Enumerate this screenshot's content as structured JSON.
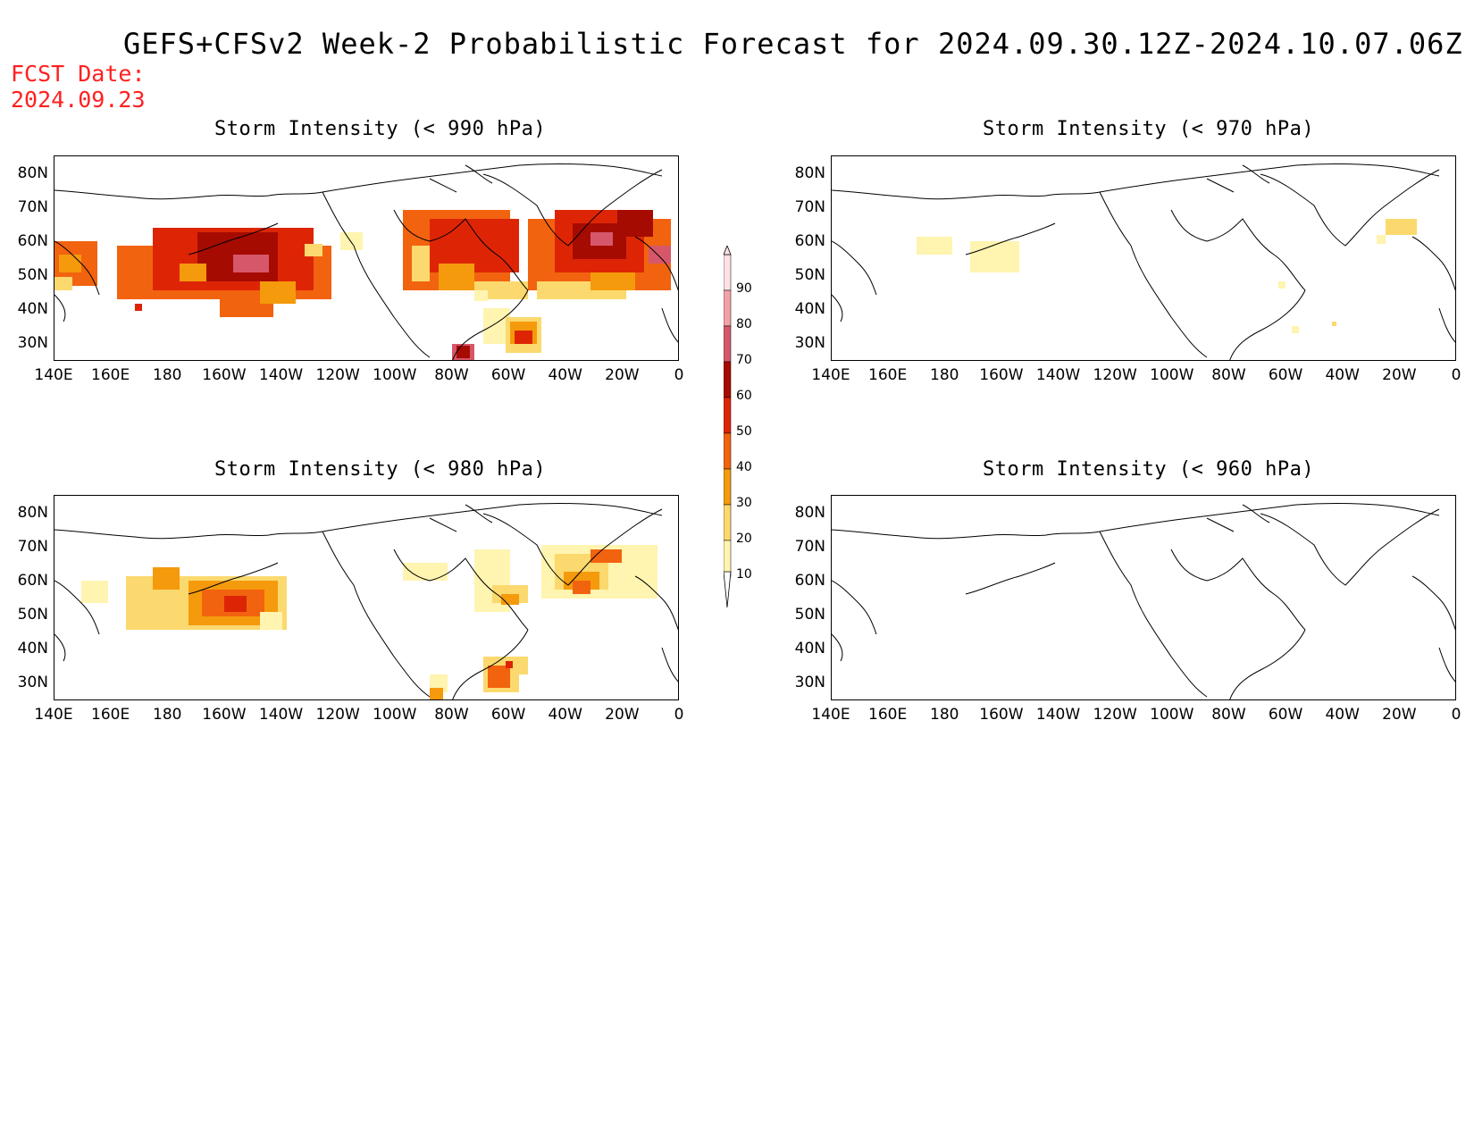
{
  "title": "GEFS+CFSv2 Week-2 Probabilistic Forecast for 2024.09.30.12Z-2024.10.07.06Z",
  "fcst_label": "FCST Date:",
  "fcst_date": "2024.09.23",
  "lat_labels": [
    "80N",
    "70N",
    "60N",
    "50N",
    "40N",
    "30N"
  ],
  "lon_labels": [
    "140E",
    "160E",
    "180",
    "160W",
    "140W",
    "120W",
    "100W",
    "80W",
    "60W",
    "40W",
    "20W",
    "0"
  ],
  "panels": [
    {
      "id": "p990",
      "title": "Storm Intensity (< 990 hPa)"
    },
    {
      "id": "p970",
      "title": "Storm Intensity (< 970 hPa)"
    },
    {
      "id": "p980",
      "title": "Storm Intensity (< 980 hPa)"
    },
    {
      "id": "p960",
      "title": "Storm Intensity (< 960 hPa)"
    }
  ],
  "colorbar": {
    "levels": [
      "10",
      "20",
      "30",
      "40",
      "50",
      "60",
      "70",
      "80",
      "90"
    ],
    "colors": [
      "#ffffff",
      "#fff4b0",
      "#fbd96e",
      "#f59a0c",
      "#f2630f",
      "#dd2506",
      "#a60b02",
      "#d6576a",
      "#f2a1a8",
      "#fde1e5"
    ]
  }
}
